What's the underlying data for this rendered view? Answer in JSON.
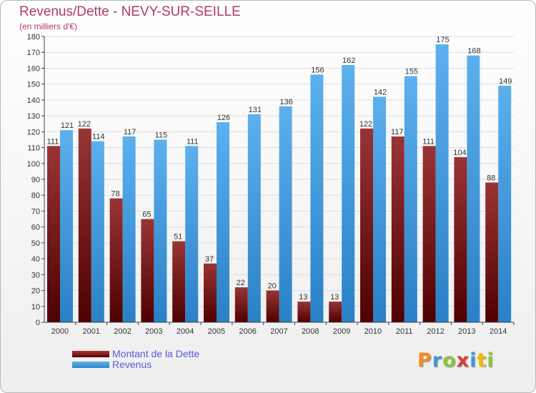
{
  "title": "Revenus/Dette - NEVY-SUR-SEILLE",
  "subtitle": "(en milliers d'€)",
  "legend": {
    "debt_label": "Montant de la Dette",
    "revenue_label": "Revenus"
  },
  "logo": {
    "letters": [
      "P",
      "r",
      "o",
      "x",
      "i",
      "t",
      "i"
    ],
    "colors": [
      "#f08c1e",
      "#3a9ad9",
      "#8cc63f",
      "#e03a3a",
      "#3a9ad9",
      "#f5b800",
      "#8cc63f"
    ]
  },
  "colors": {
    "debt": "#7a1f1f",
    "revenue": "#3d9be0",
    "title": "#b0386a",
    "legend_text": "#5a5adc"
  },
  "chart_data": {
    "type": "bar",
    "title": "Revenus/Dette - NEVY-SUR-SEILLE",
    "subtitle": "(en milliers d'€)",
    "categories": [
      "2000",
      "2001",
      "2002",
      "2003",
      "2004",
      "2005",
      "2006",
      "2007",
      "2008",
      "2009",
      "2010",
      "2011",
      "2012",
      "2013",
      "2014"
    ],
    "series": [
      {
        "name": "Montant de la Dette",
        "values": [
          111,
          122,
          78,
          65,
          51,
          37,
          22,
          20,
          13,
          13,
          122,
          117,
          111,
          104,
          88
        ]
      },
      {
        "name": "Revenus",
        "values": [
          121,
          114,
          117,
          115,
          111,
          126,
          131,
          136,
          156,
          162,
          142,
          155,
          175,
          168,
          149
        ]
      }
    ],
    "ylim": [
      0,
      180
    ],
    "yticks": [
      0,
      10,
      20,
      30,
      40,
      50,
      60,
      70,
      80,
      90,
      100,
      110,
      120,
      130,
      140,
      150,
      160,
      170,
      180
    ],
    "grid": true,
    "legend": "bottom-left"
  }
}
